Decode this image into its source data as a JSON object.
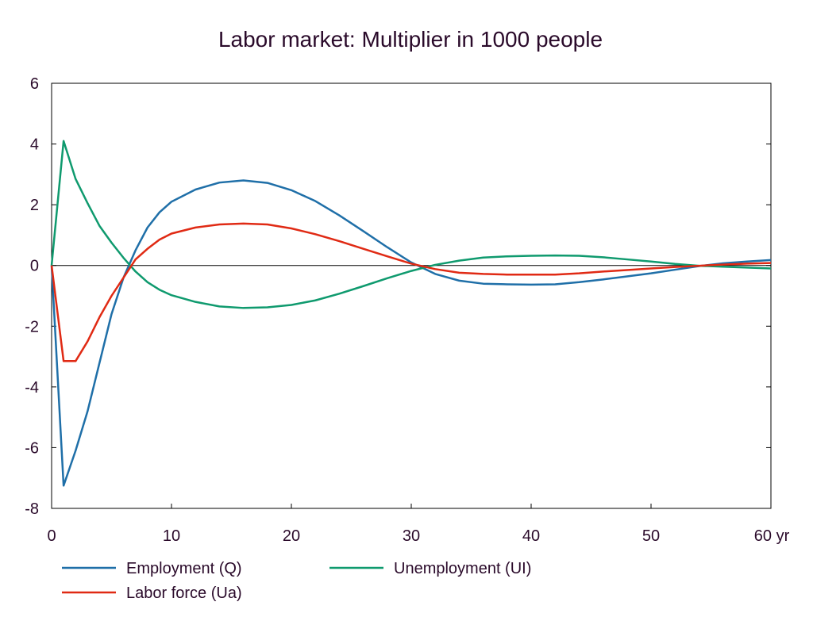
{
  "chart_data": {
    "type": "line",
    "title": "Labor market: Multiplier in 1000 people",
    "xlabel": "",
    "ylabel": "",
    "x_unit_label": "yr",
    "xlim": [
      0,
      60
    ],
    "ylim": [
      -8,
      6
    ],
    "xticks": [
      0,
      10,
      20,
      30,
      40,
      50,
      60
    ],
    "xtick_labels": [
      "0",
      "10",
      "20",
      "30",
      "40",
      "50",
      "60 yr"
    ],
    "yticks": [
      -8,
      -6,
      -4,
      -2,
      0,
      2,
      4,
      6
    ],
    "ytick_labels": [
      "-8",
      "-6",
      "-4",
      "-2",
      "0",
      "2",
      "4",
      "6"
    ],
    "grid": false,
    "zero_line": true,
    "legend_position": "bottom",
    "x": [
      0,
      1,
      2,
      3,
      4,
      5,
      6,
      7,
      8,
      9,
      10,
      12,
      14,
      16,
      18,
      20,
      22,
      24,
      26,
      28,
      30,
      32,
      34,
      36,
      38,
      40,
      42,
      44,
      46,
      48,
      50,
      52,
      54,
      56,
      58,
      60
    ],
    "series": [
      {
        "name": "Employment (Q)",
        "color": "#1f6fa8",
        "values": [
          0,
          -7.25,
          -6.1,
          -4.8,
          -3.2,
          -1.6,
          -0.4,
          0.5,
          1.25,
          1.75,
          2.1,
          2.5,
          2.73,
          2.8,
          2.72,
          2.48,
          2.12,
          1.65,
          1.13,
          0.6,
          0.1,
          -0.28,
          -0.5,
          -0.6,
          -0.62,
          -0.63,
          -0.62,
          -0.55,
          -0.46,
          -0.36,
          -0.26,
          -0.14,
          -0.02,
          0.07,
          0.13,
          0.18
        ]
      },
      {
        "name": "Unemployment (UI)",
        "color": "#0f9a6e",
        "values": [
          0,
          4.1,
          2.85,
          2.05,
          1.3,
          0.75,
          0.25,
          -0.2,
          -0.55,
          -0.8,
          -0.98,
          -1.2,
          -1.35,
          -1.4,
          -1.38,
          -1.3,
          -1.15,
          -0.93,
          -0.68,
          -0.42,
          -0.18,
          0.02,
          0.16,
          0.26,
          0.3,
          0.32,
          0.33,
          0.32,
          0.27,
          0.2,
          0.13,
          0.05,
          -0.01,
          -0.04,
          -0.07,
          -0.1
        ]
      },
      {
        "name": "Labor force (Ua)",
        "color": "#e02a14",
        "values": [
          0,
          -3.15,
          -3.15,
          -2.5,
          -1.7,
          -1.0,
          -0.4,
          0.2,
          0.55,
          0.85,
          1.05,
          1.25,
          1.35,
          1.38,
          1.35,
          1.22,
          1.03,
          0.8,
          0.55,
          0.3,
          0.06,
          -0.12,
          -0.24,
          -0.28,
          -0.3,
          -0.3,
          -0.3,
          -0.26,
          -0.2,
          -0.15,
          -0.1,
          -0.05,
          -0.01,
          0.03,
          0.06,
          0.08
        ]
      }
    ]
  }
}
